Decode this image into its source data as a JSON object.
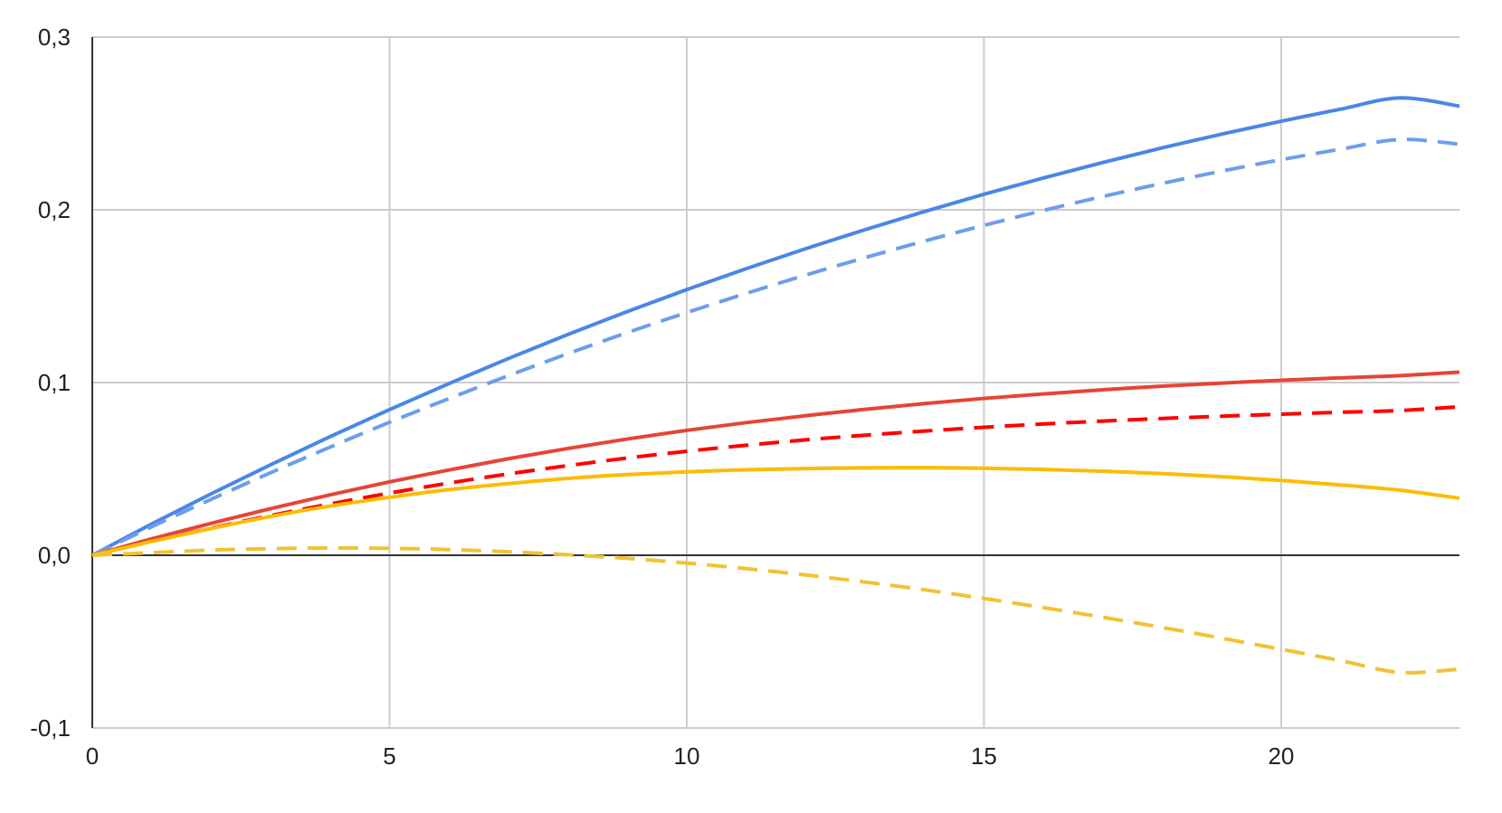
{
  "chart_data": {
    "type": "line",
    "title": "",
    "xlabel": "",
    "ylabel": "",
    "xlim": [
      0,
      23
    ],
    "ylim": [
      -0.1,
      0.3
    ],
    "x_ticks": [
      {
        "value": 0,
        "label": "0"
      },
      {
        "value": 5,
        "label": "5"
      },
      {
        "value": 10,
        "label": "10"
      },
      {
        "value": 15,
        "label": "15"
      },
      {
        "value": 20,
        "label": "20"
      }
    ],
    "y_ticks": [
      {
        "value": -0.1,
        "label": "-0,1"
      },
      {
        "value": 0.0,
        "label": "0,0"
      },
      {
        "value": 0.1,
        "label": "0,1"
      },
      {
        "value": 0.2,
        "label": "0,2"
      },
      {
        "value": 0.3,
        "label": "0,3"
      }
    ],
    "grid": true,
    "legend": "none",
    "x": [
      0,
      1,
      2,
      3,
      4,
      5,
      6,
      7,
      8,
      9,
      10,
      11,
      12,
      13,
      14,
      15,
      16,
      17,
      18,
      19,
      20,
      21,
      22,
      23
    ],
    "series": [
      {
        "color": "#4a86e8",
        "dash": "solid",
        "values": [
          0.0,
          0.0181,
          0.0356,
          0.0524,
          0.0687,
          0.0843,
          0.0994,
          0.1139,
          0.1278,
          0.1411,
          0.1538,
          0.1659,
          0.1775,
          0.1885,
          0.199,
          0.209,
          0.2184,
          0.2274,
          0.2359,
          0.2438,
          0.2513,
          0.2583,
          0.2648,
          0.26
        ]
      },
      {
        "color": "#6d9eeb",
        "dash": "dashed",
        "values": [
          0.0,
          0.0165,
          0.0324,
          0.0478,
          0.0626,
          0.077,
          0.0907,
          0.104,
          0.1167,
          0.1289,
          0.1405,
          0.1516,
          0.1622,
          0.1723,
          0.1819,
          0.191,
          0.1996,
          0.2077,
          0.2153,
          0.2224,
          0.229,
          0.2351,
          0.2407,
          0.238
        ]
      },
      {
        "color": "#e84335",
        "dash": "solid",
        "values": [
          0.0,
          0.0095,
          0.0185,
          0.027,
          0.035,
          0.0425,
          0.0494,
          0.0559,
          0.0618,
          0.0673,
          0.0723,
          0.0768,
          0.0808,
          0.0845,
          0.0878,
          0.0908,
          0.0934,
          0.0958,
          0.0979,
          0.0997,
          0.1013,
          0.1027,
          0.104,
          0.106
        ]
      },
      {
        "color": "#ff0000",
        "dash": "dashed",
        "values": [
          0.0,
          0.008,
          0.0157,
          0.023,
          0.0297,
          0.036,
          0.0418,
          0.0471,
          0.0519,
          0.0563,
          0.0602,
          0.0637,
          0.0668,
          0.0695,
          0.0719,
          0.0741,
          0.076,
          0.0777,
          0.0792,
          0.0805,
          0.0817,
          0.0828,
          0.0838,
          0.086
        ]
      },
      {
        "color": "#fbbc04",
        "dash": "solid",
        "values": [
          0.0,
          0.008,
          0.0155,
          0.0225,
          0.0285,
          0.0335,
          0.038,
          0.0415,
          0.0445,
          0.0467,
          0.0483,
          0.0495,
          0.0502,
          0.0506,
          0.0507,
          0.0504,
          0.0497,
          0.0487,
          0.0473,
          0.0455,
          0.0433,
          0.0407,
          0.0377,
          0.033
        ]
      },
      {
        "color": "#f1c232",
        "dash": "dashed",
        "values": [
          0.0,
          0.0015,
          0.003,
          0.0038,
          0.0042,
          0.004,
          0.0033,
          0.002,
          0.0003,
          -0.0018,
          -0.0045,
          -0.0077,
          -0.0114,
          -0.0155,
          -0.02,
          -0.025,
          -0.0303,
          -0.0359,
          -0.0418,
          -0.048,
          -0.0544,
          -0.061,
          -0.0678,
          -0.066
        ]
      }
    ]
  }
}
